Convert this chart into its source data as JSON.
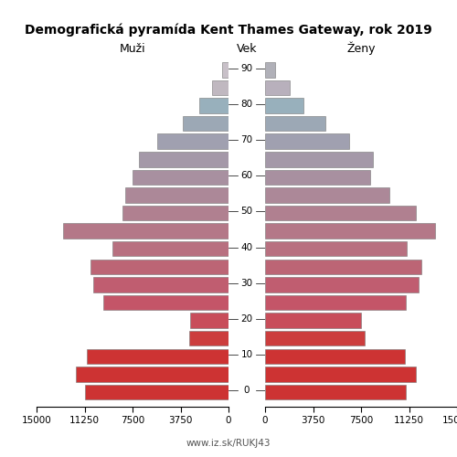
{
  "title": "Demografická pyramída Kent Thames Gateway, rok 2019",
  "xlabel_left": "Muži",
  "xlabel_right": "Ženy",
  "xlabel_center": "Vek",
  "footer": "www.iz.sk/RUKJ43",
  "xlim": 15000,
  "xticks": [
    0,
    3750,
    7500,
    11250,
    15000
  ],
  "age_groups": [
    0,
    5,
    10,
    15,
    20,
    25,
    30,
    35,
    40,
    45,
    50,
    55,
    60,
    65,
    70,
    75,
    80,
    85,
    90
  ],
  "males": [
    11200,
    11900,
    11100,
    3100,
    3000,
    9800,
    10600,
    10800,
    9100,
    12900,
    8300,
    8100,
    7500,
    7000,
    5600,
    3600,
    2300,
    1300,
    500
  ],
  "females": [
    11000,
    11800,
    10900,
    7800,
    7500,
    11000,
    12000,
    12200,
    11100,
    13300,
    11800,
    9700,
    8200,
    8400,
    6600,
    4700,
    3000,
    1900,
    800
  ],
  "color_male": {
    "0": "#cd3333",
    "5": "#cd3333",
    "10": "#cd3333",
    "15": "#cc3d3d",
    "20": "#c84d5a",
    "25": "#c45568",
    "30": "#c05d70",
    "35": "#bc6575",
    "40": "#b87080",
    "45": "#b47888",
    "50": "#b08090",
    "55": "#ac8898",
    "60": "#a890a0",
    "65": "#a498a8",
    "70": "#a0a0b0",
    "75": "#9ca8b5",
    "80": "#98b0bc",
    "85": "#c0b8c0",
    "90": "#c8c0c8"
  },
  "color_female": {
    "0": "#cd3333",
    "5": "#cd3333",
    "10": "#cd3333",
    "15": "#cc3d3d",
    "20": "#c84d5a",
    "25": "#c45568",
    "30": "#c05d70",
    "35": "#bc6575",
    "40": "#b87080",
    "45": "#b47888",
    "50": "#b08090",
    "55": "#ac8898",
    "60": "#a890a0",
    "65": "#a498a8",
    "70": "#a0a0b0",
    "75": "#9ca8b5",
    "80": "#98b0bc",
    "85": "#b8b0bc",
    "90": "#b0b0b8"
  }
}
